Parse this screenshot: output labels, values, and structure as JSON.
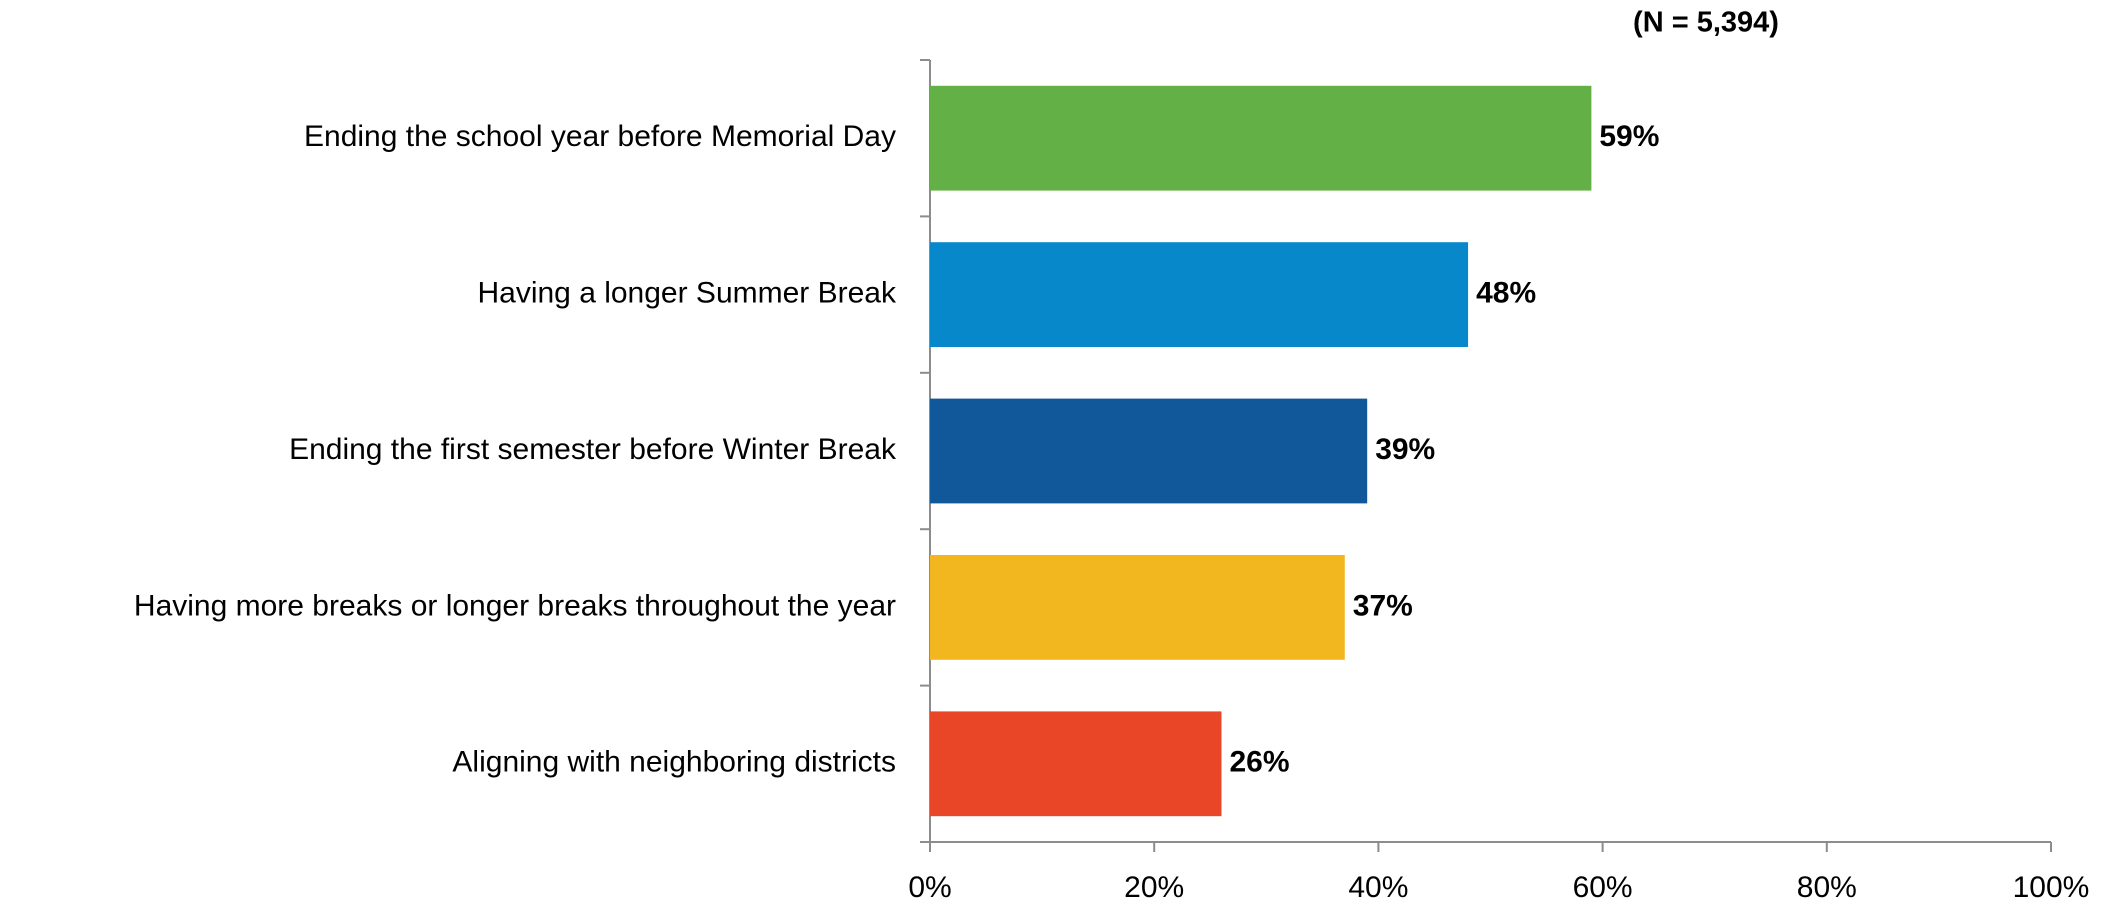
{
  "chart_data": {
    "type": "bar",
    "orientation": "horizontal",
    "subtitle": "(N = 5,394)",
    "categories": [
      "Ending the school year before Memorial Day",
      "Having a longer Summer Break",
      "Ending the first semester before Winter Break",
      "Having more breaks or longer breaks throughout the year",
      "Aligning with neighboring districts"
    ],
    "values": [
      59,
      48,
      39,
      37,
      26
    ],
    "value_labels": [
      "59%",
      "48%",
      "39%",
      "37%",
      "26%"
    ],
    "colors": [
      "#62b046",
      "#0688ca",
      "#10589a",
      "#f2b61e",
      "#e84627"
    ],
    "xlim": [
      0,
      100
    ],
    "xticks": [
      {
        "value": 0,
        "label": "0%"
      },
      {
        "value": 20,
        "label": "20%"
      },
      {
        "value": 40,
        "label": "40%"
      },
      {
        "value": 60,
        "label": "60%"
      },
      {
        "value": 80,
        "label": "80%"
      },
      {
        "value": 100,
        "label": "100%"
      }
    ],
    "grid": false
  }
}
